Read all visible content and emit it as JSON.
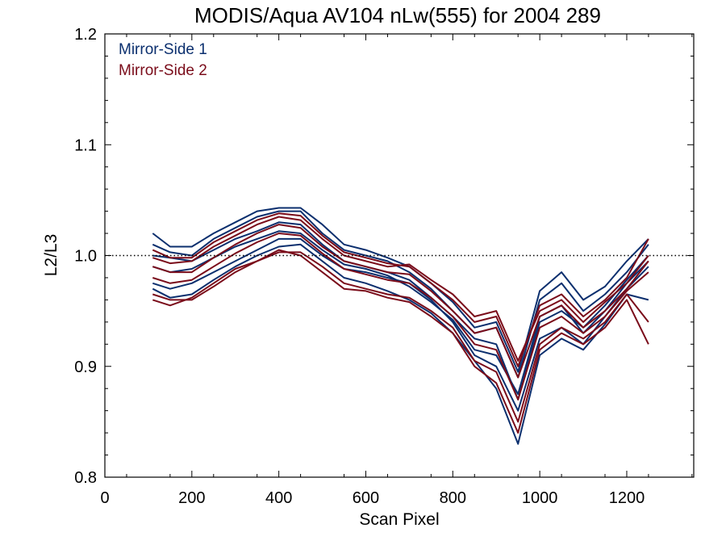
{
  "chart_data": {
    "type": "line",
    "title": "MODIS/Aqua AV104 nLw(555) for 2004 289",
    "xlabel": "Scan Pixel",
    "ylabel": "L2/L3",
    "xlim": [
      0,
      1354
    ],
    "ylim": [
      0.8,
      1.2
    ],
    "xticks": [
      0,
      200,
      400,
      600,
      800,
      1000,
      1200
    ],
    "xtick_labels": [
      "0",
      "200",
      "400",
      "600",
      "800",
      "1000",
      "1200"
    ],
    "yticks": [
      0.8,
      0.9,
      1.0,
      1.1,
      1.2
    ],
    "ytick_labels": [
      "0.8",
      "0.9",
      "1.0",
      "1.1",
      "1.2"
    ],
    "reference_line": {
      "y": 1.0,
      "style": "dotted"
    },
    "legend": {
      "placement": "top-left"
    },
    "colors": {
      "ms1": "#0b2f6e",
      "ms2": "#7a0c1a"
    },
    "x": [
      110,
      150,
      200,
      250,
      300,
      350,
      400,
      450,
      500,
      550,
      600,
      650,
      700,
      750,
      800,
      850,
      900,
      950,
      1000,
      1050,
      1100,
      1150,
      1200,
      1250
    ],
    "series": [
      {
        "name": "Mirror-Side 1",
        "color": "#0b2f6e",
        "values": [
          1.01,
          1.003,
          1.0,
          1.015,
          1.025,
          1.035,
          1.04,
          1.04,
          1.02,
          1.005,
          1.0,
          0.995,
          0.985,
          0.97,
          0.95,
          0.93,
          0.935,
          0.89,
          0.96,
          0.975,
          0.95,
          0.965,
          0.985,
          1.01
        ]
      },
      {
        "name": "",
        "color": "#0b2f6e",
        "values": [
          1.02,
          1.008,
          1.008,
          1.02,
          1.03,
          1.04,
          1.043,
          1.043,
          1.028,
          1.01,
          1.005,
          0.998,
          0.99,
          0.975,
          0.958,
          0.935,
          0.94,
          0.895,
          0.968,
          0.985,
          0.96,
          0.972,
          0.995,
          1.015
        ]
      },
      {
        "name": "",
        "color": "#0b2f6e",
        "values": [
          1.0,
          0.998,
          0.995,
          1.005,
          1.015,
          1.022,
          1.03,
          1.028,
          1.01,
          0.995,
          0.99,
          0.985,
          0.978,
          0.962,
          0.945,
          0.925,
          0.92,
          0.87,
          0.94,
          0.95,
          0.935,
          0.955,
          0.978,
          1.0
        ]
      },
      {
        "name": "",
        "color": "#0b2f6e",
        "values": [
          0.975,
          0.97,
          0.975,
          0.985,
          0.995,
          1.005,
          1.015,
          1.015,
          1.0,
          0.988,
          0.985,
          0.98,
          0.975,
          0.96,
          0.94,
          0.91,
          0.9,
          0.86,
          0.925,
          0.935,
          0.92,
          0.945,
          0.97,
          0.99
        ]
      },
      {
        "name": "",
        "color": "#0b2f6e",
        "values": [
          0.97,
          0.962,
          0.965,
          0.978,
          0.99,
          1.0,
          1.008,
          1.01,
          0.995,
          0.98,
          0.975,
          0.968,
          0.96,
          0.948,
          0.93,
          0.905,
          0.88,
          0.83,
          0.91,
          0.925,
          0.915,
          0.938,
          0.965,
          0.96
        ]
      },
      {
        "name": "",
        "color": "#0b2f6e",
        "values": [
          0.99,
          0.985,
          0.988,
          0.998,
          1.008,
          1.015,
          1.022,
          1.02,
          1.005,
          0.992,
          0.988,
          0.982,
          0.972,
          0.958,
          0.942,
          0.915,
          0.91,
          0.875,
          0.945,
          0.955,
          0.93,
          0.95,
          0.975,
          0.995
        ]
      },
      {
        "name": "Mirror-Side 2",
        "color": "#7a0c1a",
        "values": [
          1.005,
          0.998,
          0.998,
          1.012,
          1.022,
          1.032,
          1.038,
          1.036,
          1.018,
          1.003,
          0.998,
          0.993,
          0.99,
          0.975,
          0.96,
          0.94,
          0.945,
          0.9,
          0.955,
          0.965,
          0.945,
          0.96,
          0.98,
          1.015
        ]
      },
      {
        "name": "",
        "color": "#7a0c1a",
        "values": [
          0.998,
          0.993,
          0.995,
          1.008,
          1.018,
          1.028,
          1.035,
          1.032,
          1.015,
          1.0,
          0.995,
          0.99,
          0.992,
          0.978,
          0.965,
          0.945,
          0.95,
          0.905,
          0.95,
          0.96,
          0.94,
          0.958,
          0.975,
          1.0
        ]
      },
      {
        "name": "",
        "color": "#7a0c1a",
        "values": [
          0.99,
          0.985,
          0.985,
          0.998,
          1.01,
          1.02,
          1.028,
          1.025,
          1.008,
          0.995,
          0.99,
          0.985,
          0.983,
          0.968,
          0.95,
          0.93,
          0.935,
          0.89,
          0.945,
          0.955,
          0.935,
          0.95,
          0.97,
          0.995
        ]
      },
      {
        "name": "",
        "color": "#7a0c1a",
        "values": [
          0.965,
          0.96,
          0.96,
          0.972,
          0.985,
          0.995,
          1.003,
          1.003,
          0.99,
          0.975,
          0.97,
          0.965,
          0.962,
          0.95,
          0.935,
          0.905,
          0.895,
          0.85,
          0.92,
          0.935,
          0.925,
          0.94,
          0.965,
          0.94
        ]
      },
      {
        "name": "",
        "color": "#7a0c1a",
        "values": [
          0.96,
          0.955,
          0.962,
          0.975,
          0.988,
          0.995,
          1.005,
          1.0,
          0.985,
          0.97,
          0.968,
          0.962,
          0.958,
          0.945,
          0.93,
          0.9,
          0.885,
          0.84,
          0.915,
          0.93,
          0.92,
          0.935,
          0.96,
          0.92
        ]
      },
      {
        "name": "",
        "color": "#7a0c1a",
        "values": [
          0.98,
          0.975,
          0.978,
          0.99,
          1.002,
          1.012,
          1.02,
          1.018,
          1.002,
          0.988,
          0.983,
          0.978,
          0.975,
          0.962,
          0.945,
          0.92,
          0.915,
          0.87,
          0.935,
          0.945,
          0.93,
          0.945,
          0.968,
          0.985
        ]
      }
    ]
  }
}
